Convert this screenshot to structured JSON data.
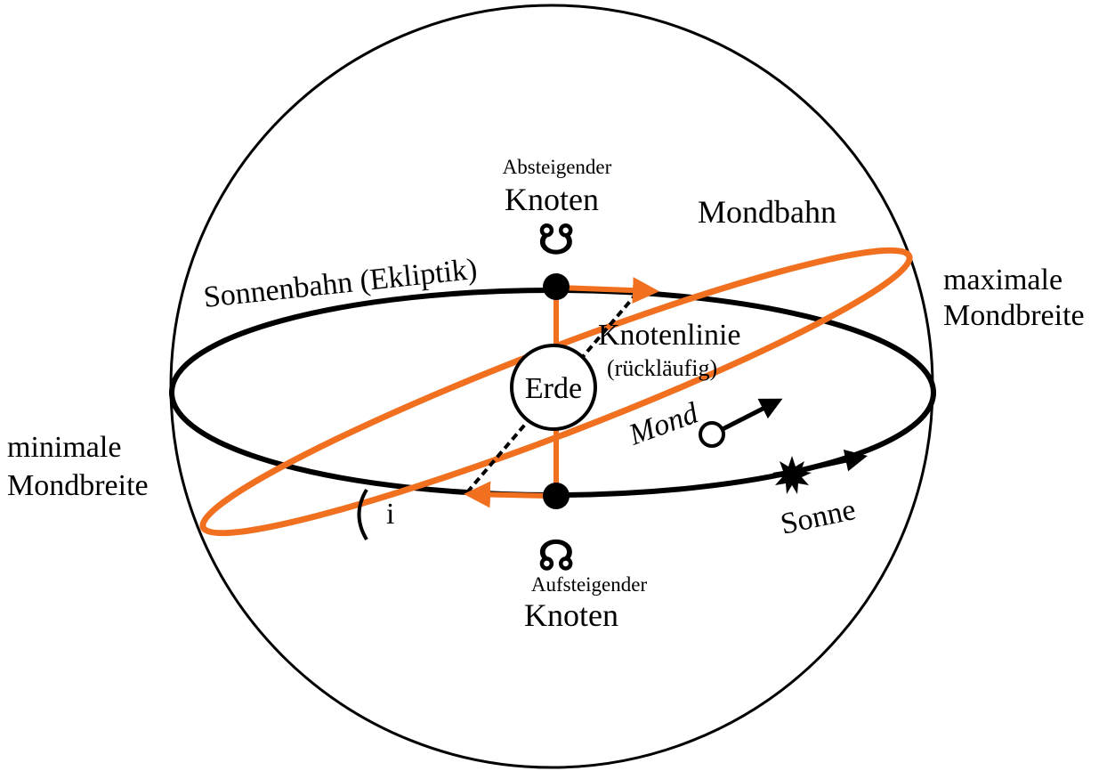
{
  "labels": {
    "descending_small": "Absteigender",
    "descending_big": "Knoten",
    "descending_symbol": "☋",
    "moon_orbit": "Mondbahn",
    "ecliptic": "Sonnenbahn (Ekliptik)",
    "max_1": "maximale",
    "max_2": "Mondbreite",
    "node_line": "Knotenlinie",
    "node_line_note": "(rückläufig)",
    "earth": "Erde",
    "moon": "Mond",
    "min_1": "minimale",
    "min_2": "Mondbreite",
    "inclination": "i",
    "sun": "Sonne",
    "ascending_symbol": "☊",
    "ascending_small": "Aufsteigender",
    "ascending_big": "Knoten"
  }
}
